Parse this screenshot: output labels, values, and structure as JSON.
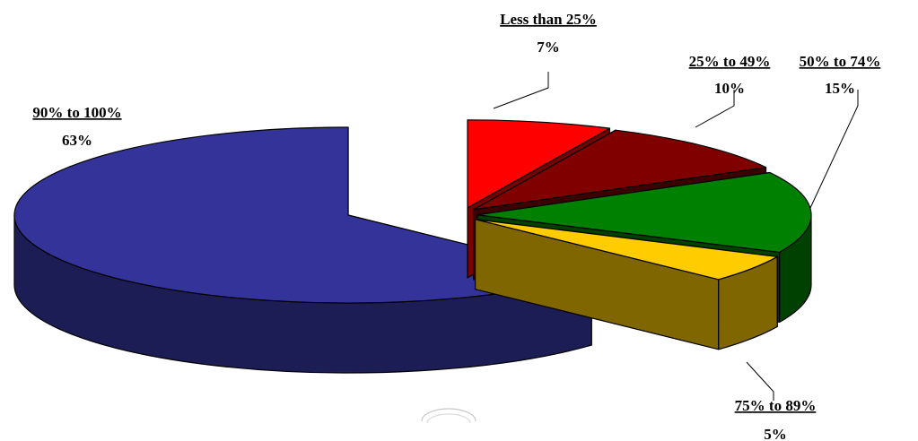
{
  "chart_data": {
    "type": "pie",
    "title": "",
    "style": "3d-exploded",
    "slices": [
      {
        "label": "Less than 25%",
        "value": 7,
        "value_label": "7%",
        "color": "#ff0000",
        "side": "#7a0000"
      },
      {
        "label": "25% to 49%",
        "value": 10,
        "value_label": "10%",
        "color": "#800000",
        "side": "#3d0000"
      },
      {
        "label": "50% to 74%",
        "value": 15,
        "value_label": "15%",
        "color": "#008000",
        "side": "#004000"
      },
      {
        "label": "75% to 89%",
        "value": 5,
        "value_label": "5%",
        "color": "#ffcc00",
        "side": "#806600"
      },
      {
        "label": "90% to 100%",
        "value": 63,
        "value_label": "63%",
        "color": "#333399",
        "side": "#1d1d55"
      }
    ]
  }
}
